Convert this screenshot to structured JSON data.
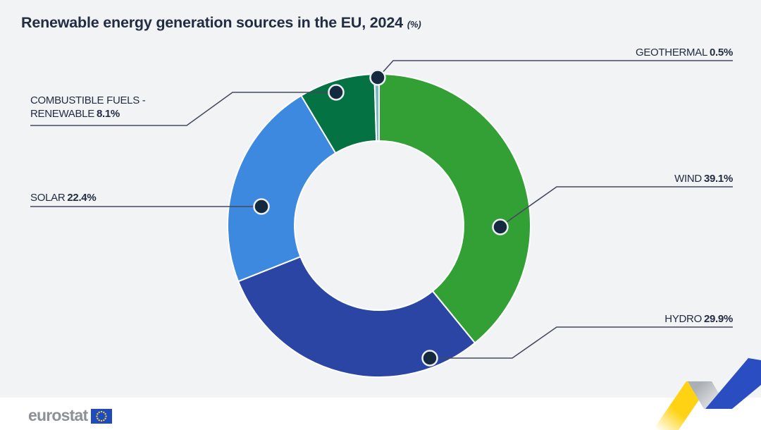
{
  "title": "Renewable energy generation sources in the EU, 2024",
  "title_suffix": "(%)",
  "chart_data": {
    "type": "pie",
    "variant": "donut",
    "title": "Renewable energy generation sources in the EU, 2024",
    "unit": "%",
    "start_angle_deg": 0,
    "direction": "clockwise",
    "segments": [
      {
        "name": "Wind",
        "label": "WIND",
        "value": 39.1,
        "display": "39.1%",
        "color": "#33a036"
      },
      {
        "name": "Hydro",
        "label": "HYDRO",
        "value": 29.9,
        "display": "29.9%",
        "color": "#2b45a5"
      },
      {
        "name": "Solar",
        "label": "SOLAR",
        "value": 22.4,
        "display": "22.4%",
        "color": "#3d89e0"
      },
      {
        "name": "Combustible fuels - renewable",
        "label_line1": "COMBUSTIBLE FUELS -",
        "label_line2": "RENEWABLE",
        "value": 8.1,
        "display": "8.1%",
        "color": "#057243"
      },
      {
        "name": "Geothermal",
        "label": "GEOTHERMAL",
        "value": 0.5,
        "display": "0.5%",
        "color": "#7ab8c4"
      }
    ]
  },
  "style": {
    "background": "#f2f3f4",
    "footer_background": "#ffffff",
    "text_color": "#222d42",
    "leader_line_color": "#424b5e",
    "dot_fill": "#15293f",
    "dot_ring": "#edf0f2",
    "segment_gap_color": "#ffffff",
    "ribbon_yellow": "#ffd313",
    "ribbon_gray": "#aab0b5",
    "ribbon_blue": "#2b4dc2",
    "logo_blue": "#1f4bbf",
    "logo_star_yellow": "#ffd617",
    "logo_text_color": "#8d9195"
  },
  "footer": {
    "logo_text": "eurostat"
  }
}
